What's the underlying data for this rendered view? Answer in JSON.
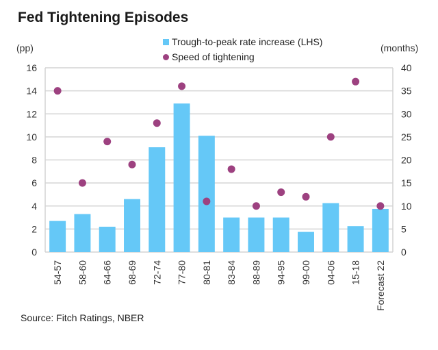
{
  "chart_data": {
    "type": "bar",
    "title": "Fed Tightening Episodes",
    "ylabel": "(pp)",
    "y2label": "(months)",
    "xlabel": "",
    "ylim": [
      0,
      16
    ],
    "y2lim": [
      0,
      40
    ],
    "yticks": [
      0,
      2,
      4,
      6,
      8,
      10,
      12,
      14,
      16
    ],
    "y2ticks": [
      0,
      5,
      10,
      15,
      20,
      25,
      30,
      35,
      40
    ],
    "grid": true,
    "legend_position": "top-center",
    "categories": [
      "54-57",
      "58-60",
      "64-66",
      "68-69",
      "72-74",
      "77-80",
      "80-81",
      "83-84",
      "88-89",
      "94-95",
      "99-00",
      "04-06",
      "15-18",
      "Forecast 22"
    ],
    "series": [
      {
        "name": "Trough-to-peak rate increase (LHS)",
        "type": "bar",
        "axis": "left",
        "color": "#65c8f7",
        "values": [
          2.7,
          3.3,
          2.2,
          4.6,
          9.1,
          12.9,
          10.1,
          3.0,
          3.0,
          3.0,
          1.75,
          4.25,
          2.25,
          3.75
        ]
      },
      {
        "name": "Speed of tightening",
        "type": "scatter",
        "axis": "right",
        "color": "#9d4180",
        "values": [
          35,
          15,
          24,
          19,
          28,
          36,
          11,
          18,
          10,
          13,
          12,
          25,
          37,
          10
        ]
      }
    ],
    "source": "Source: Fitch Ratings, NBER"
  }
}
